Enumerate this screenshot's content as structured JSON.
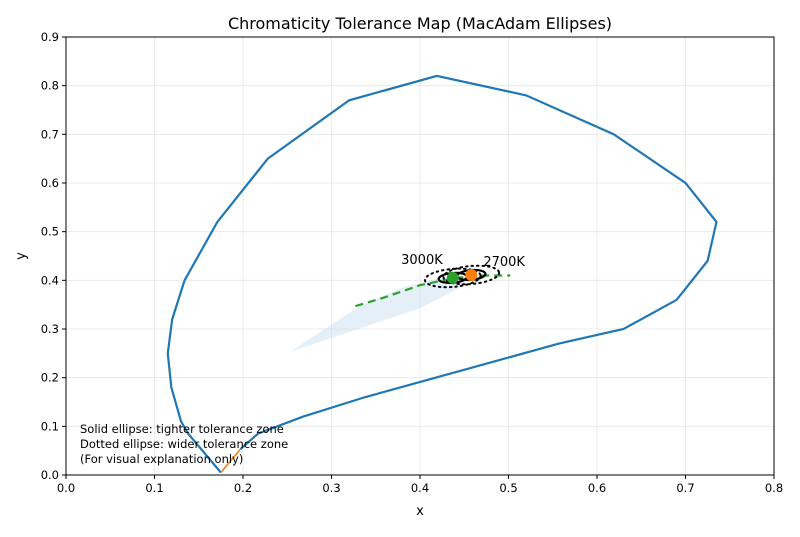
{
  "chart_data": {
    "type": "line",
    "title": "Chromaticity Tolerance Map (MacAdam Ellipses)",
    "xlabel": "x",
    "ylabel": "y",
    "xlim": [
      0,
      0.8
    ],
    "ylim": [
      0,
      0.9
    ],
    "grid": true,
    "xticks": [
      "0.0",
      "0.1",
      "0.2",
      "0.3",
      "0.4",
      "0.5",
      "0.6",
      "0.7",
      "0.8"
    ],
    "yticks": [
      "0.0",
      "0.1",
      "0.2",
      "0.3",
      "0.4",
      "0.5",
      "0.6",
      "0.7",
      "0.8",
      "0.9"
    ],
    "spectral_locus": {
      "color": "#1f77b4",
      "points": [
        [
          0.175,
          0.005
        ],
        [
          0.138,
          0.085
        ],
        [
          0.13,
          0.11
        ],
        [
          0.119,
          0.18
        ],
        [
          0.115,
          0.25
        ],
        [
          0.12,
          0.32
        ],
        [
          0.134,
          0.4
        ],
        [
          0.171,
          0.52
        ],
        [
          0.228,
          0.65
        ],
        [
          0.32,
          0.77
        ],
        [
          0.419,
          0.82
        ],
        [
          0.52,
          0.78
        ],
        [
          0.619,
          0.7
        ],
        [
          0.7,
          0.6
        ],
        [
          0.735,
          0.52
        ],
        [
          0.725,
          0.44
        ],
        [
          0.69,
          0.36
        ],
        [
          0.63,
          0.3
        ],
        [
          0.557,
          0.27
        ],
        [
          0.338,
          0.16
        ],
        [
          0.268,
          0.12
        ],
        [
          0.217,
          0.085
        ],
        [
          0.197,
          0.053
        ]
      ]
    },
    "purple_line": {
      "color": "#ff7f0e",
      "points": [
        [
          0.175,
          0.005
        ],
        [
          0.197,
          0.053
        ]
      ]
    },
    "planckian_locus": {
      "color": "#2ca02c",
      "points": [
        [
          0.327,
          0.347
        ],
        [
          0.36,
          0.365
        ],
        [
          0.4,
          0.39
        ],
        [
          0.44,
          0.405
        ],
        [
          0.47,
          0.41
        ],
        [
          0.502,
          0.41
        ]
      ]
    },
    "shaded_region": {
      "color": "#c6dbef",
      "points": [
        [
          0.253,
          0.253
        ],
        [
          0.33,
          0.3
        ],
        [
          0.4,
          0.343
        ],
        [
          0.44,
          0.38
        ],
        [
          0.46,
          0.405
        ],
        [
          0.423,
          0.405
        ],
        [
          0.38,
          0.385
        ],
        [
          0.33,
          0.345
        ]
      ]
    },
    "targets": [
      {
        "label": "3000K",
        "x": 0.437,
        "y": 0.405,
        "color": "#2ca02c",
        "solid_ellipse": [
          0.032,
          0.02
        ],
        "dotted_ellipse": [
          0.063,
          0.037
        ]
      },
      {
        "label": "2700K",
        "x": 0.458,
        "y": 0.411,
        "color": "#ff7f0e",
        "solid_ellipse": [
          0.032,
          0.02
        ],
        "dotted_ellipse": [
          0.063,
          0.037
        ]
      }
    ],
    "annotation": [
      "Solid ellipse: tighter tolerance zone",
      "Dotted ellipse: wider tolerance zone",
      "(For visual explanation only)"
    ]
  }
}
